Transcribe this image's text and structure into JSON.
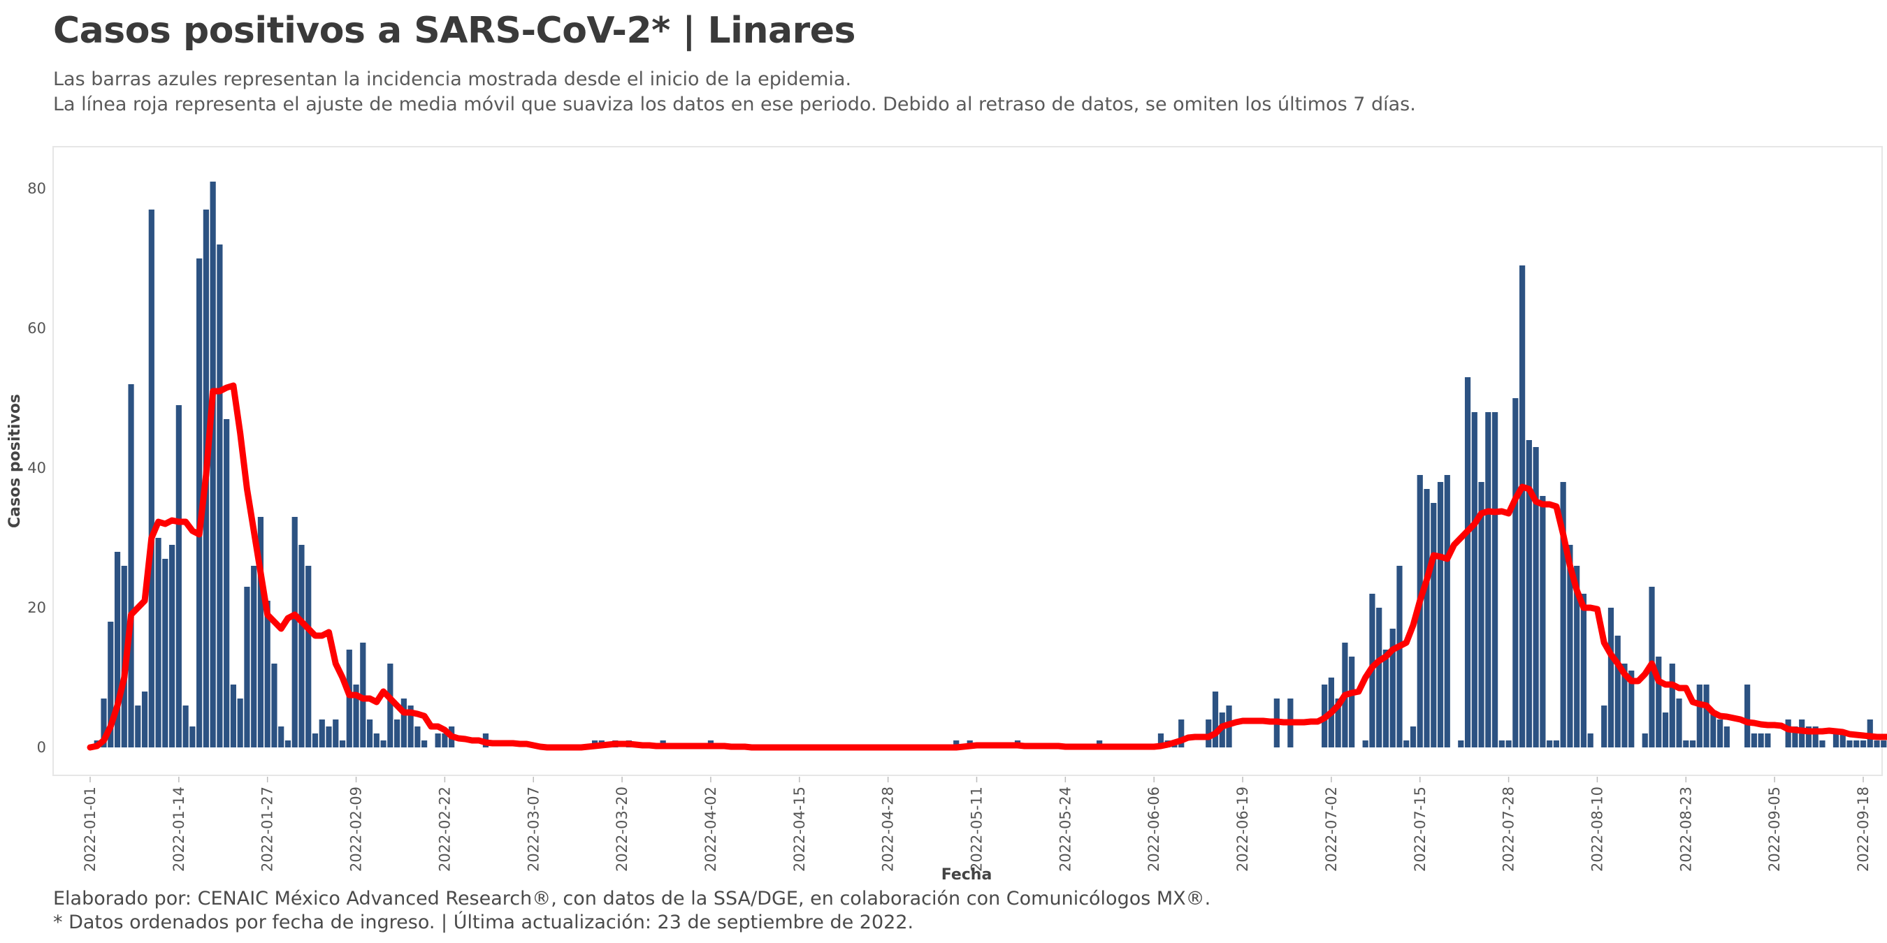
{
  "header": {
    "title": "Casos positivos a SARS-CoV-2* | Linares",
    "subtitle_line1": "Las barras azules representan la incidencia mostrada desde el inicio de la epidemia.",
    "subtitle_line2": "La línea roja representa el ajuste de media móvil que suaviza los datos en ese periodo. Debido al retraso de datos, se omiten los últimos 7 días."
  },
  "footer": {
    "line1": "Elaborado por: CENAIC México Advanced Research®, con datos de la SSA/DGE, en colaboración con Comunicólogos MX®.",
    "line2": "* Datos ordenados por fecha de ingreso. | Última actualización: 23 de septiembre de 2022."
  },
  "colors": {
    "bars": "#2c5282",
    "line": "#ff0000",
    "panel_border": "#e6e6e6"
  },
  "chart_data": {
    "type": "bar",
    "xlabel": "Fecha",
    "ylabel": "Casos positivos",
    "ylim": [
      -4,
      86
    ],
    "yticks": [
      0,
      20,
      40,
      60,
      80
    ],
    "x_start": "2022-01-01",
    "xtick_labels": [
      "2022-01-01",
      "2022-01-14",
      "2022-01-27",
      "2022-02-09",
      "2022-02-22",
      "2022-03-07",
      "2022-03-20",
      "2022-04-02",
      "2022-04-15",
      "2022-04-28",
      "2022-05-11",
      "2022-05-24",
      "2022-06-06",
      "2022-06-19",
      "2022-07-02",
      "2022-07-15",
      "2022-07-28",
      "2022-08-10",
      "2022-08-23",
      "2022-09-05",
      "2022-09-18"
    ],
    "grid": false,
    "end_label": "1",
    "series": [
      {
        "name": "Casos",
        "values": [
          0,
          1,
          7,
          18,
          28,
          26,
          52,
          6,
          8,
          77,
          30,
          27,
          29,
          49,
          6,
          3,
          70,
          77,
          81,
          72,
          47,
          9,
          7,
          23,
          26,
          33,
          21,
          12,
          3,
          1,
          33,
          29,
          26,
          2,
          4,
          3,
          4,
          1,
          14,
          9,
          15,
          4,
          2,
          1,
          12,
          4,
          7,
          6,
          3,
          1,
          0,
          2,
          2,
          3,
          0,
          0,
          0,
          0,
          2,
          0,
          0,
          0,
          0,
          0,
          0,
          0,
          0,
          0,
          0,
          0,
          0,
          0,
          0,
          0,
          1,
          1,
          0,
          1,
          0,
          1,
          0,
          0,
          0,
          0,
          1,
          0,
          0,
          0,
          0,
          0,
          0,
          1,
          0,
          0,
          0,
          0,
          0,
          0,
          0,
          0,
          0,
          0,
          0,
          0,
          0,
          0,
          0,
          0,
          0,
          0,
          0,
          0,
          0,
          0,
          0,
          0,
          0,
          0,
          0,
          0,
          0,
          0,
          0,
          0,
          0,
          0,
          0,
          1,
          0,
          1,
          0,
          0,
          0,
          0,
          0,
          0,
          1,
          0,
          0,
          0,
          0,
          0,
          0,
          0,
          0,
          0,
          0,
          0,
          1,
          0,
          0,
          0,
          0,
          0,
          0,
          0,
          0,
          2,
          1,
          1,
          4,
          0,
          0,
          0,
          4,
          8,
          5,
          6,
          0,
          0,
          0,
          0,
          0,
          0,
          7,
          0,
          7,
          0,
          0,
          0,
          0,
          9,
          10,
          7,
          15,
          13,
          0,
          1,
          22,
          20,
          14,
          17,
          26,
          1,
          3,
          39,
          37,
          35,
          38,
          39,
          0,
          1,
          53,
          48,
          38,
          48,
          48,
          1,
          1,
          50,
          69,
          44,
          43,
          36,
          1,
          1,
          38,
          29,
          26,
          22,
          2,
          0,
          6,
          20,
          16,
          12,
          11,
          0,
          2,
          23,
          13,
          5,
          12,
          7,
          1,
          1,
          9,
          9,
          5,
          4,
          3,
          0,
          0,
          9,
          2,
          2,
          2,
          0,
          0,
          4,
          3,
          4,
          3,
          3,
          1,
          0,
          2,
          2,
          1,
          1,
          1,
          4,
          1,
          1,
          1,
          1
        ],
        "moving_average": [
          0,
          0.2,
          1,
          3,
          6,
          10,
          19,
          20,
          21,
          30,
          32.3,
          32,
          32.5,
          32.3,
          32.3,
          31,
          30.5,
          39,
          51,
          51,
          51.5,
          51.8,
          45,
          37,
          31,
          25,
          19,
          18,
          17,
          18.5,
          19,
          18,
          17,
          16,
          16,
          16.5,
          12,
          10,
          7.5,
          7.5,
          7,
          7,
          6.5,
          8,
          7,
          6,
          5,
          5,
          4.8,
          4.5,
          3,
          3,
          2.5,
          1.6,
          1.3,
          1.2,
          1,
          1,
          0.7,
          0.6,
          0.6,
          0.6,
          0.6,
          0.5,
          0.5,
          0.3,
          0.1,
          0,
          0,
          0,
          0,
          0,
          0,
          0.1,
          0.2,
          0.3,
          0.4,
          0.5,
          0.5,
          0.5,
          0.4,
          0.3,
          0.3,
          0.2,
          0.2,
          0.2,
          0.2,
          0.2,
          0.2,
          0.2,
          0.2,
          0.2,
          0.2,
          0.2,
          0.1,
          0.1,
          0.1,
          0,
          0,
          0,
          0,
          0,
          0,
          0,
          0,
          0,
          0,
          0,
          0,
          0,
          0,
          0,
          0,
          0,
          0,
          0,
          0,
          0,
          0,
          0,
          0,
          0,
          0,
          0,
          0,
          0,
          0,
          0,
          0.1,
          0.2,
          0.3,
          0.3,
          0.3,
          0.3,
          0.3,
          0.3,
          0.3,
          0.2,
          0.2,
          0.2,
          0.2,
          0.2,
          0.2,
          0.1,
          0.1,
          0.1,
          0.1,
          0.1,
          0.1,
          0.1,
          0.1,
          0.1,
          0.1,
          0.1,
          0.1,
          0.1,
          0.1,
          0.2,
          0.4,
          0.7,
          1,
          1.4,
          1.5,
          1.5,
          1.5,
          2,
          3,
          3.3,
          3.6,
          3.8,
          3.8,
          3.8,
          3.8,
          3.7,
          3.7,
          3.6,
          3.6,
          3.6,
          3.6,
          3.7,
          3.7,
          4.2,
          5,
          6,
          7.5,
          7.8,
          8,
          10,
          11.5,
          12.4,
          13,
          14,
          14.5,
          15,
          17.5,
          21,
          24,
          27.5,
          27.3,
          27,
          29,
          30,
          31,
          32,
          33.5,
          33.8,
          33.7,
          33.8,
          33.5,
          35.6,
          37.3,
          37,
          35.2,
          34.8,
          34.8,
          34.5,
          30.5,
          26,
          22.5,
          20,
          20,
          19.8,
          15,
          13.3,
          12,
          10.5,
          9.5,
          9.5,
          10.5,
          12,
          9.5,
          9,
          9,
          8.5,
          8.5,
          6.5,
          6.2,
          6,
          5,
          4.5,
          4.4,
          4.2,
          4,
          3.6,
          3.5,
          3.3,
          3.2,
          3.2,
          3.1,
          2.6,
          2.5,
          2.4,
          2.3,
          2.3,
          2.3,
          2.4,
          2.3,
          2.2,
          1.9,
          1.8,
          1.7,
          1.6,
          1.5,
          1.5,
          1.5,
          1.4,
          1.4,
          1.3,
          1.2,
          1.1,
          1
        ]
      }
    ]
  }
}
